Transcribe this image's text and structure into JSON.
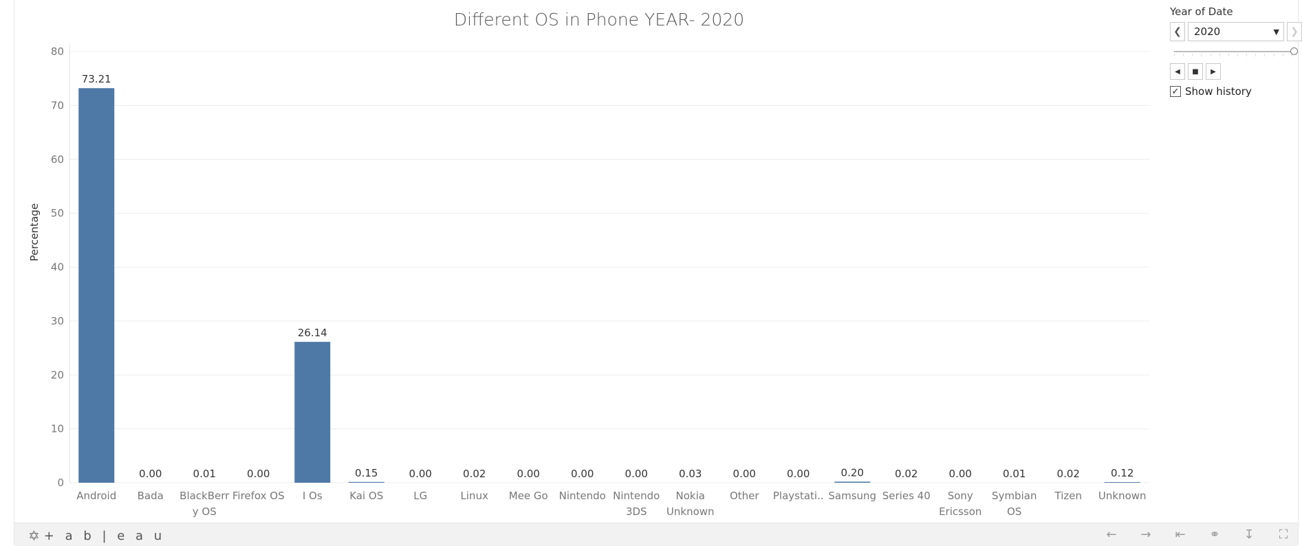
{
  "filter": {
    "label": "Year of Date",
    "selected": "2020",
    "prev_icon": "chevron-left-icon",
    "next_icon": "chevron-right-icon",
    "history_label": "Show history",
    "history_checked": true
  },
  "footer": {
    "logo_text": "+ a b | e a u"
  },
  "chart_data": {
    "type": "bar",
    "title": "Different OS in Phone YEAR- 2020",
    "xlabel": "",
    "ylabel": "Percentage",
    "ylim": [
      0,
      80
    ],
    "yticks": [
      0,
      10,
      20,
      30,
      40,
      50,
      60,
      70,
      80
    ],
    "grid": true,
    "bar_color": "#4e79a7",
    "categories": [
      [
        "Android"
      ],
      [
        "Bada"
      ],
      [
        "BlackBerr",
        "y OS"
      ],
      [
        "Firefox OS"
      ],
      [
        "I Os"
      ],
      [
        "Kai OS"
      ],
      [
        "LG"
      ],
      [
        "Linux"
      ],
      [
        "Mee Go"
      ],
      [
        "Nintendo"
      ],
      [
        "Nintendo",
        "3DS"
      ],
      [
        "Nokia",
        "Unknown"
      ],
      [
        "Other"
      ],
      [
        "Playstati.."
      ],
      [
        "Samsung"
      ],
      [
        "Series 40"
      ],
      [
        "Sony",
        "Ericsson"
      ],
      [
        "Symbian",
        "OS"
      ],
      [
        "Tizen"
      ],
      [
        "Unknown"
      ]
    ],
    "values": [
      73.21,
      0.0,
      0.01,
      0.0,
      26.14,
      0.15,
      0.0,
      0.02,
      0.0,
      0.0,
      0.0,
      0.03,
      0.0,
      0.0,
      0.2,
      0.02,
      0.0,
      0.01,
      0.02,
      0.12
    ],
    "value_labels": [
      "73.21",
      "0.00",
      "0.01",
      "0.00",
      "26.14",
      "0.15",
      "0.00",
      "0.02",
      "0.00",
      "0.00",
      "0.00",
      "0.03",
      "0.00",
      "0.00",
      "0.20",
      "0.02",
      "0.00",
      "0.01",
      "0.02",
      "0.12"
    ]
  }
}
